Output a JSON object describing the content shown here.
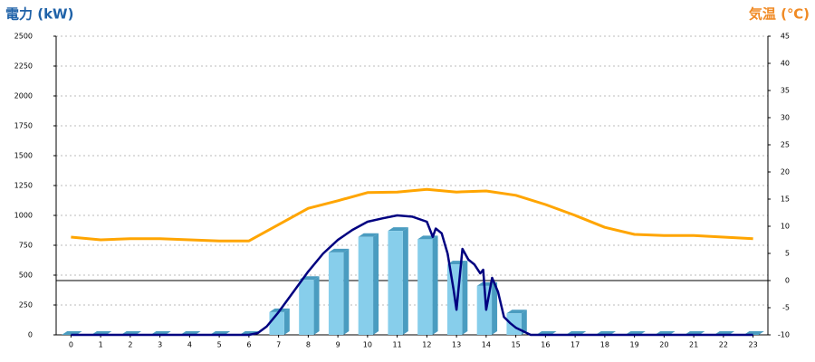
{
  "chart_data": {
    "type": "bar",
    "title": "電力 (kW)",
    "y2_title": "気温 (℃)",
    "xlim": [
      -0.5,
      23.5
    ],
    "xticks": [
      0,
      1,
      2,
      3,
      4,
      5,
      6,
      7,
      8,
      9,
      10,
      11,
      12,
      13,
      14,
      15,
      16,
      17,
      18,
      19,
      20,
      21,
      22,
      23
    ],
    "ylim": [
      0,
      2500
    ],
    "yticks": [
      0,
      250,
      500,
      750,
      1000,
      1250,
      1500,
      1750,
      2000,
      2250,
      2500
    ],
    "y2lim": [
      -10,
      45
    ],
    "y2ticks": [
      -10,
      -5,
      0,
      5,
      10,
      15,
      20,
      25,
      30,
      35,
      40,
      45
    ],
    "grid": true,
    "series": [
      {
        "type": "bar",
        "color": "#87ceeb",
        "side_color": "#4a9cc0",
        "x": [
          0,
          1,
          2,
          3,
          4,
          5,
          6,
          7,
          8,
          9,
          10,
          11,
          12,
          13,
          14,
          15,
          16,
          17,
          18,
          19,
          20,
          21,
          22,
          23
        ],
        "values": [
          0,
          0,
          0,
          0,
          0,
          0,
          0,
          190,
          460,
          690,
          820,
          870,
          800,
          590,
          410,
          180,
          0,
          0,
          0,
          0,
          0,
          0,
          0,
          0
        ]
      },
      {
        "type": "line",
        "color": "#000080",
        "x": [
          0,
          6,
          6.3,
          6.6,
          7,
          7.5,
          8,
          8.5,
          9,
          9.5,
          10,
          10.5,
          11,
          11.5,
          12,
          12.2,
          12.3,
          12.5,
          12.7,
          12.9,
          13,
          13.2,
          13.4,
          13.6,
          13.8,
          13.9,
          14,
          14.2,
          14.4,
          14.6,
          14.8,
          15,
          15.5,
          23
        ],
        "values": [
          0,
          0,
          15,
          70,
          190,
          360,
          530,
          680,
          795,
          880,
          947,
          975,
          1000,
          990,
          947,
          820,
          890,
          850,
          680,
          380,
          210,
          720,
          630,
          590,
          515,
          545,
          210,
          477,
          360,
          150,
          100,
          60,
          0,
          0
        ]
      },
      {
        "type": "line",
        "axis": "y2",
        "color": "#ffa500",
        "x": [
          0,
          1,
          2,
          3,
          4,
          5,
          6,
          7,
          8,
          9,
          10,
          11,
          12,
          13,
          14,
          15,
          16,
          17,
          18,
          19,
          20,
          21,
          22,
          23
        ],
        "values": [
          8,
          7.5,
          7.7,
          7.7,
          7.5,
          7.3,
          7.3,
          10.3,
          13.3,
          14.7,
          16.2,
          16.3,
          16.8,
          16.3,
          16.5,
          15.7,
          14,
          12,
          9.8,
          8.5,
          8.3,
          8.3,
          8,
          7.7
        ]
      }
    ]
  }
}
